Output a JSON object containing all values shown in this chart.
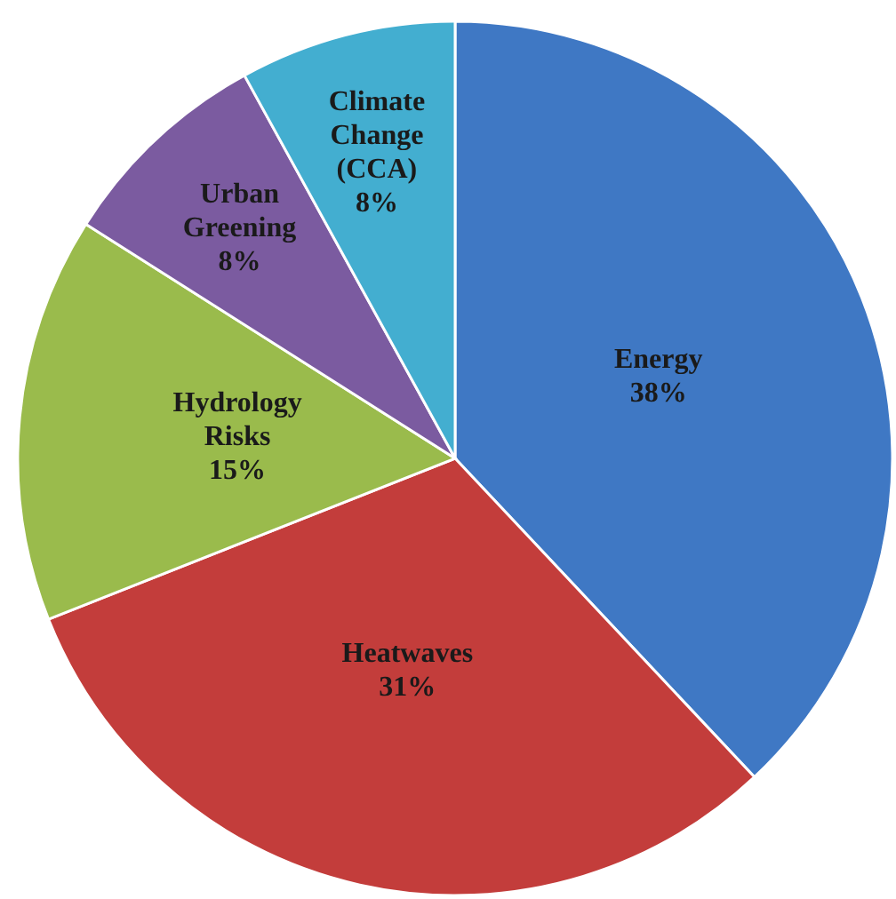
{
  "chart_data": {
    "type": "pie",
    "categories": [
      "Energy",
      "Heatwaves",
      "Hydrology Risks",
      "Urban Greening",
      "Climate Change (CCA)"
    ],
    "values": [
      38,
      31,
      15,
      8,
      8
    ],
    "colors": [
      "#3f78c4",
      "#c33d3b",
      "#9abb4c",
      "#7b5ba0",
      "#43aed0"
    ],
    "value_labels": [
      "38%",
      "31%",
      "15%",
      "8%",
      "8%"
    ]
  }
}
